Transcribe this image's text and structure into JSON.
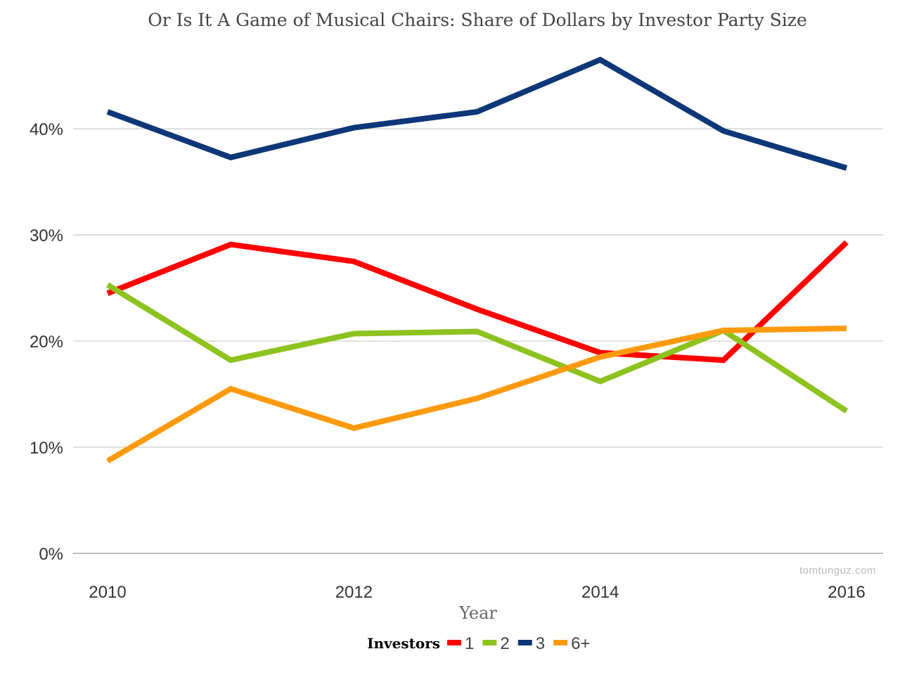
{
  "chart_data": {
    "type": "line",
    "title": "Or Is It A Game of Musical Chairs: Share of Dollars by Investor Party Size",
    "xlabel": "Year",
    "ylabel": "",
    "x": [
      2010,
      2011,
      2012,
      2013,
      2014,
      2015,
      2016
    ],
    "x_ticks": [
      "2010",
      "2012",
      "2014",
      "2016"
    ],
    "y_ticks": [
      "0%",
      "10%",
      "20%",
      "30%",
      "40%"
    ],
    "y_tick_values": [
      0,
      10,
      20,
      30,
      40
    ],
    "xlim": [
      2010,
      2016
    ],
    "ylim": [
      0,
      46.5
    ],
    "grid": true,
    "legend_title": "Investors",
    "legend_position": "bottom",
    "series": [
      {
        "name": "1",
        "color": "#ff0000",
        "values": [
          24.5,
          29.1,
          27.5,
          23.0,
          18.9,
          18.2,
          29.3
        ]
      },
      {
        "name": "2",
        "color": "#8dc21f",
        "values": [
          25.3,
          18.2,
          20.7,
          20.9,
          16.2,
          21.0,
          13.4
        ]
      },
      {
        "name": "3",
        "color": "#0e3778",
        "values": [
          41.6,
          37.3,
          40.1,
          41.6,
          46.5,
          39.8,
          36.3
        ]
      },
      {
        "name": "6+",
        "color": "#ff9a0e",
        "values": [
          8.7,
          15.5,
          11.8,
          14.6,
          18.5,
          21.0,
          21.2
        ]
      }
    ],
    "watermark": "tomtunguz.com"
  }
}
